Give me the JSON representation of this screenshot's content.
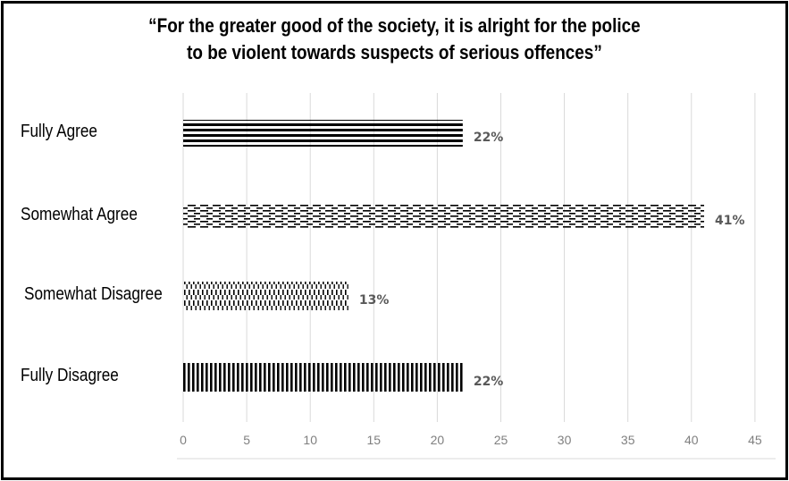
{
  "chart_data": {
    "type": "bar",
    "orientation": "horizontal",
    "title": [
      "“For the greater good of the society, it is alright for the police",
      "to be violent towards suspects of serious offences”"
    ],
    "categories": [
      "Fully Agree",
      "Somewhat Agree",
      "Somewhat Disagree",
      "Fully Disagree"
    ],
    "values": [
      22,
      41,
      13,
      22
    ],
    "data_labels": [
      "22%",
      "41%",
      "13%",
      "22%"
    ],
    "patterns": [
      "horizontal-lines",
      "horizontal-dashes",
      "vertical-dashes",
      "vertical-lines"
    ],
    "xlim": [
      0,
      45
    ],
    "xticks": [
      0,
      5,
      10,
      15,
      20,
      25,
      30,
      35,
      40,
      45
    ],
    "grid": "vertical",
    "legend": "none",
    "colors": {
      "bar": "#000000",
      "grid": "#d9d9d9",
      "tick_text": "#7f7f7f",
      "data_label": "#595959"
    }
  }
}
